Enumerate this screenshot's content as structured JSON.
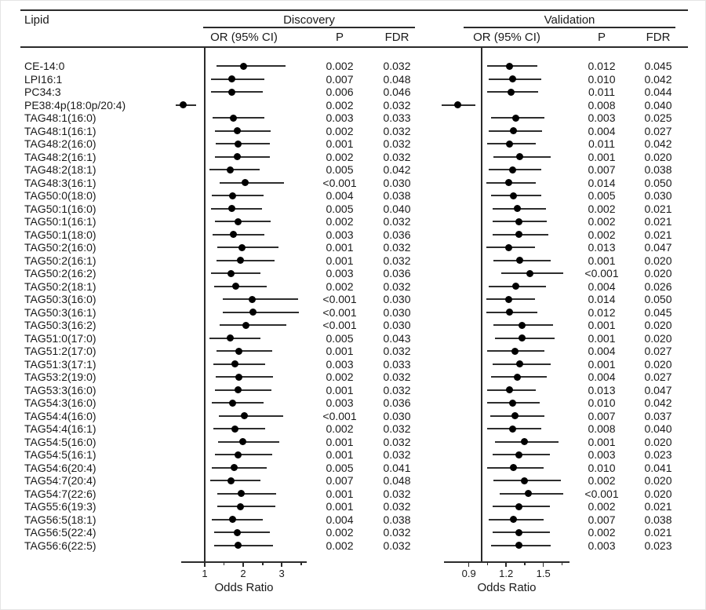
{
  "header": {
    "lipid": "Lipid",
    "or_ci": "OR (95% CI)",
    "p": "P",
    "fdr": "FDR"
  },
  "colors": {
    "text": "#1a1a1a",
    "line": "#2b2b2b",
    "marker": "#000000",
    "background": "#ffffff"
  },
  "chart_data": {
    "type": "scatter",
    "subtype": "forest-plot",
    "grid": false,
    "legend": "none",
    "panels": [
      {
        "name": "Discovery",
        "xlabel": "Odds Ratio",
        "xlim": [
          0.39,
          3.65
        ],
        "ticks": [
          "1",
          "2",
          "3"
        ],
        "minor_ticks": [
          1.5,
          2.5,
          3.5
        ],
        "ref_line": 1
      },
      {
        "name": "Validation",
        "xlabel": "Odds Ratio",
        "xlim": [
          0.7,
          1.71
        ],
        "ticks": [
          "0.9",
          "1.2",
          "1.5"
        ],
        "minor_ticks": [
          1.05,
          1.35,
          1.65
        ],
        "ref_line": 1
      }
    ],
    "rows": [
      {
        "lipid": "CE-14:0",
        "discovery": {
          "or": 2.0,
          "ci": [
            1.3,
            3.1
          ],
          "p": "0.002",
          "fdr": "0.032"
        },
        "validation": {
          "or": 1.23,
          "ci": [
            1.05,
            1.45
          ],
          "p": "0.012",
          "fdr": "0.045"
        }
      },
      {
        "lipid": "LPI16:1",
        "discovery": {
          "or": 1.7,
          "ci": [
            1.16,
            2.55
          ],
          "p": "0.007",
          "fdr": "0.048"
        },
        "validation": {
          "or": 1.25,
          "ci": [
            1.06,
            1.48
          ],
          "p": "0.010",
          "fdr": "0.042"
        }
      },
      {
        "lipid": "PC34:3",
        "discovery": {
          "or": 1.7,
          "ci": [
            1.17,
            2.5
          ],
          "p": "0.006",
          "fdr": "0.046"
        },
        "validation": {
          "or": 1.24,
          "ci": [
            1.05,
            1.46
          ],
          "p": "0.011",
          "fdr": "0.044"
        }
      },
      {
        "lipid": "PE38:4p(18:0p/20:4)",
        "discovery": {
          "or": 0.45,
          "ci": [
            0.25,
            0.78
          ],
          "p": "0.002",
          "fdr": "0.032"
        },
        "validation": {
          "or": 0.81,
          "ci": [
            0.68,
            0.95
          ],
          "p": "0.008",
          "fdr": "0.040"
        }
      },
      {
        "lipid": "TAG48:1(16:0)",
        "discovery": {
          "or": 1.75,
          "ci": [
            1.21,
            2.55
          ],
          "p": "0.003",
          "fdr": "0.033"
        },
        "validation": {
          "or": 1.28,
          "ci": [
            1.08,
            1.51
          ],
          "p": "0.003",
          "fdr": "0.025"
        }
      },
      {
        "lipid": "TAG48:1(16:1)",
        "discovery": {
          "or": 1.85,
          "ci": [
            1.26,
            2.72
          ],
          "p": "0.002",
          "fdr": "0.032"
        },
        "validation": {
          "or": 1.26,
          "ci": [
            1.06,
            1.49
          ],
          "p": "0.004",
          "fdr": "0.027"
        }
      },
      {
        "lipid": "TAG48:2(16:0)",
        "discovery": {
          "or": 1.86,
          "ci": [
            1.28,
            2.7
          ],
          "p": "0.001",
          "fdr": "0.032"
        },
        "validation": {
          "or": 1.23,
          "ci": [
            1.05,
            1.44
          ],
          "p": "0.011",
          "fdr": "0.042"
        }
      },
      {
        "lipid": "TAG48:2(16:1)",
        "discovery": {
          "or": 1.85,
          "ci": [
            1.27,
            2.7
          ],
          "p": "0.002",
          "fdr": "0.032"
        },
        "validation": {
          "or": 1.31,
          "ci": [
            1.1,
            1.56
          ],
          "p": "0.001",
          "fdr": "0.020"
        }
      },
      {
        "lipid": "TAG48:2(18:1)",
        "discovery": {
          "or": 1.66,
          "ci": [
            1.13,
            2.42
          ],
          "p": "0.005",
          "fdr": "0.042"
        },
        "validation": {
          "or": 1.25,
          "ci": [
            1.06,
            1.48
          ],
          "p": "0.007",
          "fdr": "0.038"
        }
      },
      {
        "lipid": "TAG48:3(16:1)",
        "discovery": {
          "or": 2.06,
          "ci": [
            1.38,
            3.06
          ],
          "p": "<0.001",
          "fdr": "0.030"
        },
        "validation": {
          "or": 1.22,
          "ci": [
            1.04,
            1.44
          ],
          "p": "0.014",
          "fdr": "0.050"
        }
      },
      {
        "lipid": "TAG50:0(18:0)",
        "discovery": {
          "or": 1.73,
          "ci": [
            1.19,
            2.52
          ],
          "p": "0.004",
          "fdr": "0.038"
        },
        "validation": {
          "or": 1.26,
          "ci": [
            1.08,
            1.48
          ],
          "p": "0.005",
          "fdr": "0.030"
        }
      },
      {
        "lipid": "TAG50:1(16:0)",
        "discovery": {
          "or": 1.7,
          "ci": [
            1.17,
            2.48
          ],
          "p": "0.005",
          "fdr": "0.040"
        },
        "validation": {
          "or": 1.29,
          "ci": [
            1.09,
            1.52
          ],
          "p": "0.002",
          "fdr": "0.021"
        }
      },
      {
        "lipid": "TAG50:1(16:1)",
        "discovery": {
          "or": 1.86,
          "ci": [
            1.27,
            2.72
          ],
          "p": "0.002",
          "fdr": "0.032"
        },
        "validation": {
          "or": 1.3,
          "ci": [
            1.09,
            1.53
          ],
          "p": "0.002",
          "fdr": "0.021"
        }
      },
      {
        "lipid": "TAG50:1(18:0)",
        "discovery": {
          "or": 1.75,
          "ci": [
            1.2,
            2.55
          ],
          "p": "0.003",
          "fdr": "0.036"
        },
        "validation": {
          "or": 1.3,
          "ci": [
            1.09,
            1.54
          ],
          "p": "0.002",
          "fdr": "0.021"
        }
      },
      {
        "lipid": "TAG50:2(16:0)",
        "discovery": {
          "or": 1.97,
          "ci": [
            1.33,
            2.92
          ],
          "p": "0.001",
          "fdr": "0.032"
        },
        "validation": {
          "or": 1.22,
          "ci": [
            1.04,
            1.43
          ],
          "p": "0.013",
          "fdr": "0.047"
        }
      },
      {
        "lipid": "TAG50:2(16:1)",
        "discovery": {
          "or": 1.92,
          "ci": [
            1.31,
            2.82
          ],
          "p": "0.001",
          "fdr": "0.032"
        },
        "validation": {
          "or": 1.31,
          "ci": [
            1.1,
            1.56
          ],
          "p": "0.001",
          "fdr": "0.020"
        }
      },
      {
        "lipid": "TAG50:2(16:2)",
        "discovery": {
          "or": 1.69,
          "ci": [
            1.17,
            2.45
          ],
          "p": "0.003",
          "fdr": "0.036"
        },
        "validation": {
          "or": 1.39,
          "ci": [
            1.16,
            1.66
          ],
          "p": "<0.001",
          "fdr": "0.020"
        }
      },
      {
        "lipid": "TAG50:2(18:1)",
        "discovery": {
          "or": 1.8,
          "ci": [
            1.24,
            2.62
          ],
          "p": "0.002",
          "fdr": "0.032"
        },
        "validation": {
          "or": 1.28,
          "ci": [
            1.06,
            1.52
          ],
          "p": "0.004",
          "fdr": "0.026"
        }
      },
      {
        "lipid": "TAG50:3(16:0)",
        "discovery": {
          "or": 2.24,
          "ci": [
            1.47,
            3.43
          ],
          "p": "<0.001",
          "fdr": "0.030"
        },
        "validation": {
          "or": 1.22,
          "ci": [
            1.04,
            1.43
          ],
          "p": "0.014",
          "fdr": "0.050"
        }
      },
      {
        "lipid": "TAG50:3(16:1)",
        "discovery": {
          "or": 2.26,
          "ci": [
            1.48,
            3.45
          ],
          "p": "<0.001",
          "fdr": "0.030"
        },
        "validation": {
          "or": 1.23,
          "ci": [
            1.04,
            1.45
          ],
          "p": "0.012",
          "fdr": "0.045"
        }
      },
      {
        "lipid": "TAG50:3(16:2)",
        "discovery": {
          "or": 2.07,
          "ci": [
            1.38,
            3.12
          ],
          "p": "<0.001",
          "fdr": "0.030"
        },
        "validation": {
          "or": 1.33,
          "ci": [
            1.1,
            1.58
          ],
          "p": "0.001",
          "fdr": "0.020"
        }
      },
      {
        "lipid": "TAG51:0(17:0)",
        "discovery": {
          "or": 1.67,
          "ci": [
            1.13,
            2.44
          ],
          "p": "0.005",
          "fdr": "0.043"
        },
        "validation": {
          "or": 1.33,
          "ci": [
            1.11,
            1.59
          ],
          "p": "0.001",
          "fdr": "0.020"
        }
      },
      {
        "lipid": "TAG51:2(17:0)",
        "discovery": {
          "or": 1.89,
          "ci": [
            1.3,
            2.76
          ],
          "p": "0.001",
          "fdr": "0.032"
        },
        "validation": {
          "or": 1.27,
          "ci": [
            1.05,
            1.51
          ],
          "p": "0.004",
          "fdr": "0.027"
        }
      },
      {
        "lipid": "TAG51:3(17:1)",
        "discovery": {
          "or": 1.78,
          "ci": [
            1.22,
            2.58
          ],
          "p": "0.003",
          "fdr": "0.033"
        },
        "validation": {
          "or": 1.31,
          "ci": [
            1.09,
            1.56
          ],
          "p": "0.001",
          "fdr": "0.020"
        }
      },
      {
        "lipid": "TAG53:2(19:0)",
        "discovery": {
          "or": 1.89,
          "ci": [
            1.29,
            2.77
          ],
          "p": "0.002",
          "fdr": "0.032"
        },
        "validation": {
          "or": 1.29,
          "ci": [
            1.08,
            1.53
          ],
          "p": "0.004",
          "fdr": "0.027"
        }
      },
      {
        "lipid": "TAG53:3(16:0)",
        "discovery": {
          "or": 1.86,
          "ci": [
            1.27,
            2.73
          ],
          "p": "0.001",
          "fdr": "0.032"
        },
        "validation": {
          "or": 1.23,
          "ci": [
            1.05,
            1.44
          ],
          "p": "0.013",
          "fdr": "0.047"
        }
      },
      {
        "lipid": "TAG54:3(16:0)",
        "discovery": {
          "or": 1.73,
          "ci": [
            1.18,
            2.52
          ],
          "p": "0.003",
          "fdr": "0.036"
        },
        "validation": {
          "or": 1.25,
          "ci": [
            1.05,
            1.47
          ],
          "p": "0.010",
          "fdr": "0.042"
        }
      },
      {
        "lipid": "TAG54:4(16:0)",
        "discovery": {
          "or": 2.04,
          "ci": [
            1.37,
            3.04
          ],
          "p": "<0.001",
          "fdr": "0.030"
        },
        "validation": {
          "or": 1.27,
          "ci": [
            1.07,
            1.51
          ],
          "p": "0.007",
          "fdr": "0.037"
        }
      },
      {
        "lipid": "TAG54:4(16:1)",
        "discovery": {
          "or": 1.78,
          "ci": [
            1.23,
            2.58
          ],
          "p": "0.002",
          "fdr": "0.032"
        },
        "validation": {
          "or": 1.25,
          "ci": [
            1.05,
            1.48
          ],
          "p": "0.008",
          "fdr": "0.040"
        }
      },
      {
        "lipid": "TAG54:5(16:0)",
        "discovery": {
          "or": 1.98,
          "ci": [
            1.34,
            2.93
          ],
          "p": "0.001",
          "fdr": "0.032"
        },
        "validation": {
          "or": 1.35,
          "ci": [
            1.11,
            1.62
          ],
          "p": "0.001",
          "fdr": "0.020"
        }
      },
      {
        "lipid": "TAG54:5(16:1)",
        "discovery": {
          "or": 1.87,
          "ci": [
            1.27,
            2.75
          ],
          "p": "0.001",
          "fdr": "0.032"
        },
        "validation": {
          "or": 1.3,
          "ci": [
            1.09,
            1.55
          ],
          "p": "0.003",
          "fdr": "0.023"
        }
      },
      {
        "lipid": "TAG54:6(20:4)",
        "discovery": {
          "or": 1.76,
          "ci": [
            1.18,
            2.61
          ],
          "p": "0.005",
          "fdr": "0.041"
        },
        "validation": {
          "or": 1.26,
          "ci": [
            1.05,
            1.5
          ],
          "p": "0.010",
          "fdr": "0.041"
        }
      },
      {
        "lipid": "TAG54:7(20:4)",
        "discovery": {
          "or": 1.68,
          "ci": [
            1.15,
            2.44
          ],
          "p": "0.007",
          "fdr": "0.048"
        },
        "validation": {
          "or": 1.35,
          "ci": [
            1.1,
            1.64
          ],
          "p": "0.002",
          "fdr": "0.020"
        }
      },
      {
        "lipid": "TAG54:7(22:6)",
        "discovery": {
          "or": 1.94,
          "ci": [
            1.33,
            2.85
          ],
          "p": "0.001",
          "fdr": "0.032"
        },
        "validation": {
          "or": 1.38,
          "ci": [
            1.15,
            1.66
          ],
          "p": "<0.001",
          "fdr": "0.020"
        }
      },
      {
        "lipid": "TAG55:6(19:3)",
        "discovery": {
          "or": 1.92,
          "ci": [
            1.33,
            2.83
          ],
          "p": "0.001",
          "fdr": "0.032"
        },
        "validation": {
          "or": 1.3,
          "ci": [
            1.09,
            1.55
          ],
          "p": "0.002",
          "fdr": "0.021"
        }
      },
      {
        "lipid": "TAG56:5(18:1)",
        "discovery": {
          "or": 1.73,
          "ci": [
            1.18,
            2.51
          ],
          "p": "0.004",
          "fdr": "0.038"
        },
        "validation": {
          "or": 1.26,
          "ci": [
            1.06,
            1.5
          ],
          "p": "0.007",
          "fdr": "0.038"
        }
      },
      {
        "lipid": "TAG56:5(22:4)",
        "discovery": {
          "or": 1.85,
          "ci": [
            1.25,
            2.7
          ],
          "p": "0.002",
          "fdr": "0.032"
        },
        "validation": {
          "or": 1.3,
          "ci": [
            1.09,
            1.55
          ],
          "p": "0.002",
          "fdr": "0.021"
        }
      },
      {
        "lipid": "TAG56:6(22:5)",
        "discovery": {
          "or": 1.87,
          "ci": [
            1.25,
            2.78
          ],
          "p": "0.002",
          "fdr": "0.032"
        },
        "validation": {
          "or": 1.3,
          "ci": [
            1.08,
            1.56
          ],
          "p": "0.003",
          "fdr": "0.023"
        }
      }
    ]
  }
}
